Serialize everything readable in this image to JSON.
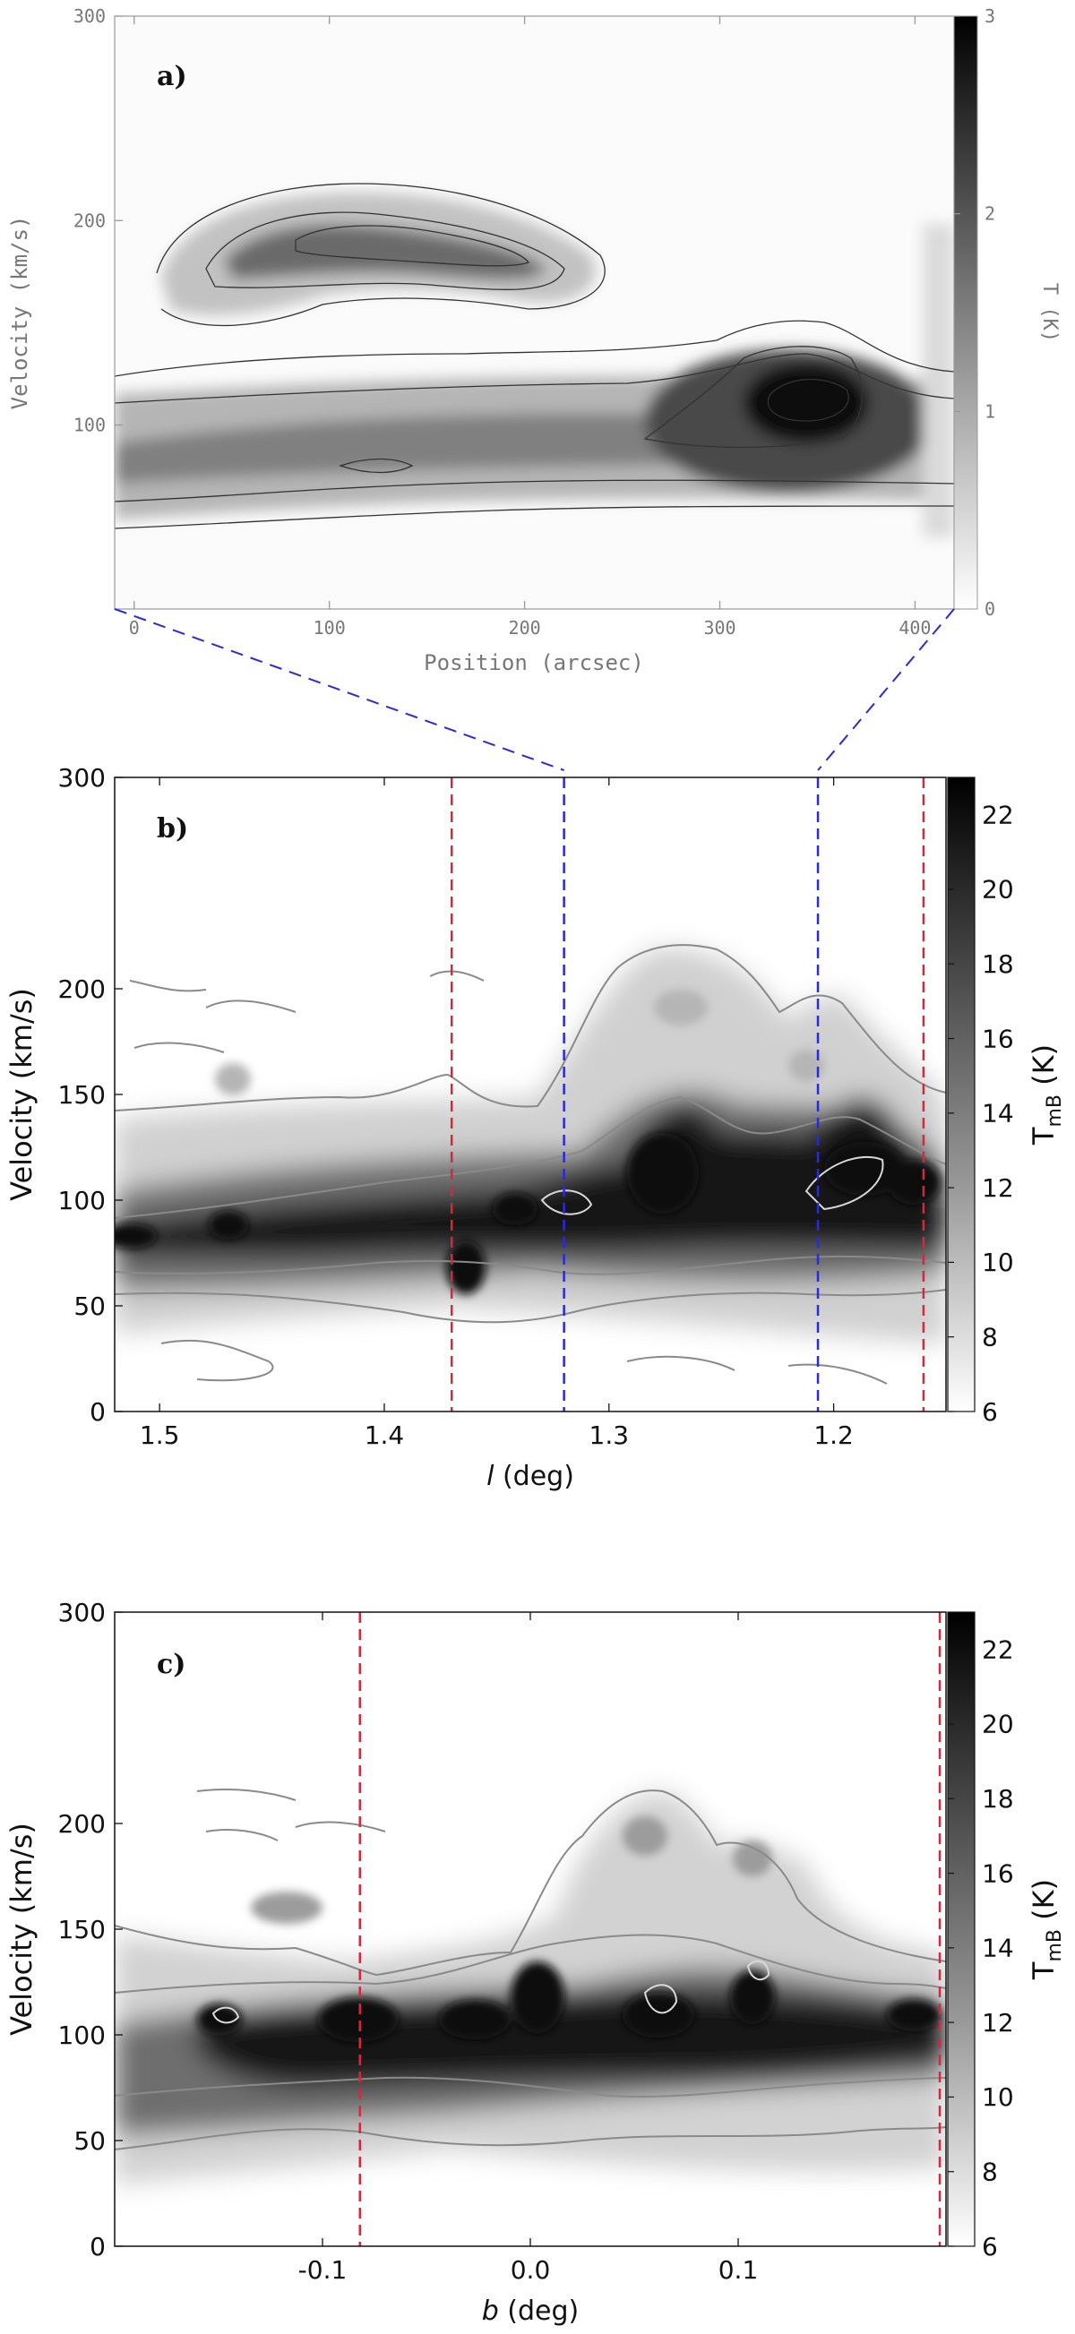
{
  "chart_data": [
    {
      "panel": "a)",
      "type": "heatmap",
      "xlabel": "Position (arcsec)",
      "ylabel": "Velocity (km/s)",
      "colorbar_label": "T (K)",
      "xlim": [
        -10,
        420
      ],
      "ylim": [
        10,
        300
      ],
      "xticks": [
        "0",
        "100",
        "200",
        "300",
        "400"
      ],
      "xtick_values": [
        0,
        100,
        200,
        300,
        400
      ],
      "yticks": [
        "100",
        "200",
        "300"
      ],
      "ytick_values": [
        100,
        200,
        300
      ],
      "colorbar_range": [
        0,
        3
      ],
      "colorbar_ticks": [
        "0",
        "1",
        "2",
        "3"
      ],
      "colorbar_tick_values": [
        0,
        1,
        2,
        3
      ],
      "features": [
        {
          "name": "low-velocity band",
          "x_range": [
            -10,
            420
          ],
          "velocity": 95,
          "peak_T": 1.4
        },
        {
          "name": "high-velocity arc",
          "x_range": [
            60,
            230
          ],
          "velocity": 185,
          "peak_T": 1.5
        },
        {
          "name": "bright clump",
          "x": 340,
          "velocity": 118,
          "peak_T": 3.0
        }
      ]
    },
    {
      "panel": "b)",
      "type": "heatmap",
      "xlabel_var": "l",
      "xlabel_rest": " (deg)",
      "ylabel": "Velocity (km/s)",
      "colorbar_label_main": "T",
      "colorbar_label_sub": "mB",
      "colorbar_label_unit": " (K)",
      "xlim": [
        1.52,
        1.15
      ],
      "ylim": [
        0,
        300
      ],
      "xticks": [
        "1.5",
        "1.4",
        "1.3",
        "1.2"
      ],
      "xtick_values": [
        1.5,
        1.4,
        1.3,
        1.2
      ],
      "yticks": [
        "0",
        "50",
        "100",
        "150",
        "200",
        "300"
      ],
      "ytick_values": [
        0,
        50,
        100,
        150,
        200,
        300
      ],
      "colorbar_range": [
        6,
        23
      ],
      "colorbar_ticks": [
        "6",
        "8",
        "10",
        "12",
        "14",
        "16",
        "18",
        "20",
        "22"
      ],
      "colorbar_tick_values": [
        6,
        8,
        10,
        12,
        14,
        16,
        18,
        20,
        22
      ],
      "vlines_red": [
        1.37,
        1.16
      ],
      "vlines_blue": [
        1.32,
        1.207
      ]
    },
    {
      "panel": "c)",
      "type": "heatmap",
      "xlabel_var": "b",
      "xlabel_rest": " (deg)",
      "ylabel": "Velocity (km/s)",
      "colorbar_label_main": "T",
      "colorbar_label_sub": "mB",
      "colorbar_label_unit": " (K)",
      "xlim": [
        -0.2,
        0.2
      ],
      "ylim": [
        0,
        300
      ],
      "xticks": [
        "-0.1",
        "0.0",
        "0.1"
      ],
      "xtick_values": [
        -0.1,
        0.0,
        0.1
      ],
      "yticks": [
        "0",
        "50",
        "100",
        "150",
        "200",
        "300"
      ],
      "ytick_values": [
        0,
        50,
        100,
        150,
        200,
        300
      ],
      "colorbar_range": [
        6,
        23
      ],
      "colorbar_ticks": [
        "6",
        "8",
        "10",
        "12",
        "14",
        "16",
        "18",
        "20",
        "22"
      ],
      "colorbar_tick_values": [
        6,
        8,
        10,
        12,
        14,
        16,
        18,
        20,
        22
      ],
      "vlines_red": [
        -0.082,
        0.197
      ]
    }
  ],
  "colors": {
    "red_line": "#d4283f",
    "blue_line": "#2a2ad8",
    "contour_light": "#888888",
    "contour_dark": "#333333"
  }
}
